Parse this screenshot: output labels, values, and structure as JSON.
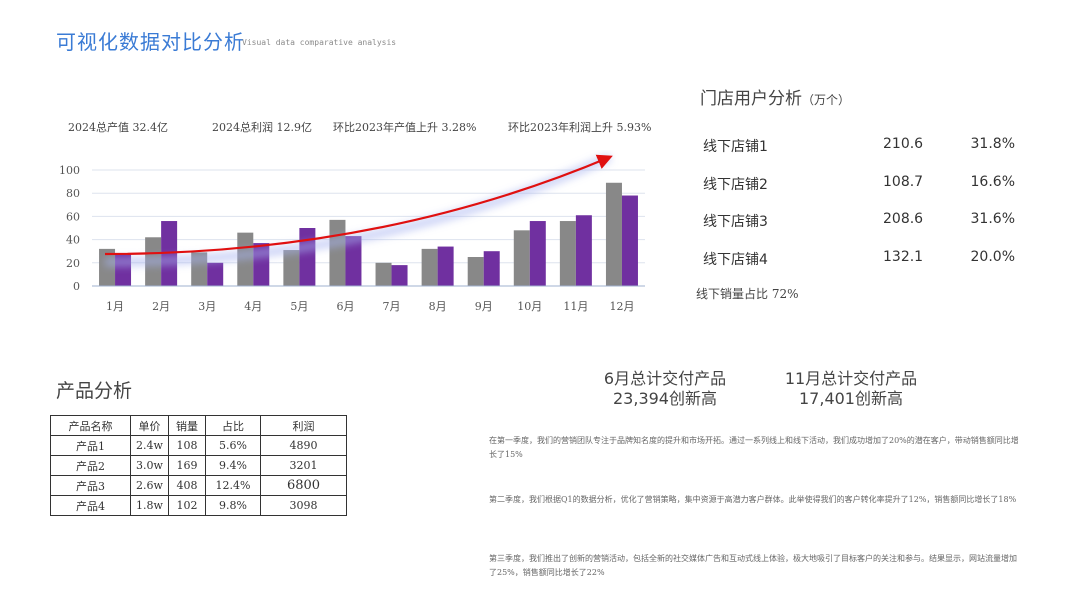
{
  "header": {
    "title": "可视化数据对比分析",
    "subtitle": "Visual data comparative analysis"
  },
  "kpis": [
    "2024总产值  32.4亿",
    "2024总利润  12.9亿",
    "环比2023年产值上升  3.28%",
    "环比2023年利润上升  5.93%"
  ],
  "chart_data": {
    "type": "bar",
    "categories": [
      "1月",
      "2月",
      "3月",
      "4月",
      "5月",
      "6月",
      "7月",
      "8月",
      "9月",
      "10月",
      "11月",
      "12月"
    ],
    "series": [
      {
        "values": [
          32,
          42,
          29,
          46,
          31,
          57,
          20,
          32,
          25,
          48,
          56,
          89
        ],
        "color": "#888888"
      },
      {
        "values": [
          28,
          56,
          20,
          37,
          50,
          43,
          18,
          34,
          30,
          56,
          61,
          78
        ],
        "color": "#7030a0"
      }
    ],
    "yticks": [
      0,
      20,
      40,
      60,
      80,
      100
    ],
    "ylim": [
      0,
      100
    ],
    "grid": true,
    "trend_arrow": {
      "color": "#e01010",
      "direction": "rising"
    }
  },
  "stores": {
    "title": "门店用户分析",
    "unit": "（万个）",
    "rows": [
      {
        "name": "线下店铺1",
        "value": "210.6",
        "pct": "31.8%"
      },
      {
        "name": "线下店铺2",
        "value": "108.7",
        "pct": "16.6%"
      },
      {
        "name": "线下店铺3",
        "value": "208.6",
        "pct": "31.6%"
      },
      {
        "name": "线下店铺4",
        "value": "132.1",
        "pct": "20.0%"
      }
    ],
    "offline_share": "线下销量占比  72%"
  },
  "products": {
    "title": "产品分析",
    "headers": [
      "产品名称",
      "单价",
      "销量",
      "占比",
      "利润"
    ],
    "rows": [
      [
        "产品1",
        "2.4w",
        "108",
        "5.6%",
        "4890"
      ],
      [
        "产品2",
        "3.0w",
        "169",
        "9.4%",
        "3201"
      ],
      [
        "产品3",
        "2.6w",
        "408",
        "12.4%",
        "6800"
      ],
      [
        "产品4",
        "1.8w",
        "102",
        "9.8%",
        "3098"
      ]
    ]
  },
  "highlights": [
    {
      "line1": "6月总计交付产品",
      "line2": "23,394创新高"
    },
    {
      "line1": "11月总计交付产品",
      "line2": "17,401创新高"
    }
  ],
  "paragraphs": [
    "在第一季度，我们的营销团队专注于品牌知名度的提升和市场开拓。通过一系列线上和线下活动，我们成功增加了20%的潜在客户，带动销售额同比增长了15%",
    "第二季度，我们根据Q1的数据分析，优化了营销策略，集中资源于高潜力客户群体。此举使得我们的客户转化率提升了12%，销售额同比增长了18%",
    "第三季度，我们推出了创新的营销活动，包括全新的社交媒体广告和互动式线上体验，极大地吸引了目标客户的关注和参与。结果显示，网站流量增加了25%，销售额同比增长了22%"
  ]
}
